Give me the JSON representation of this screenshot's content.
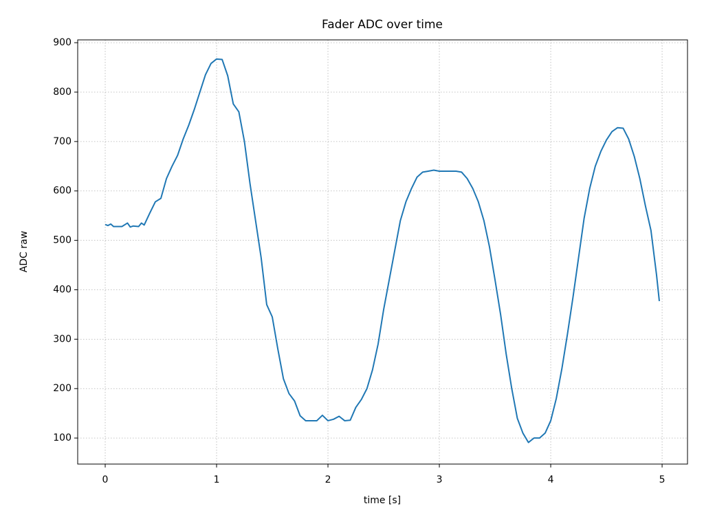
{
  "chart_data": {
    "type": "line",
    "title": "Fader ADC over time",
    "x_label": "time [s]",
    "y_label": "ADC raw",
    "x": [
      0,
      0.025,
      0.05,
      0.075,
      0.1,
      0.15,
      0.2,
      0.225,
      0.25,
      0.3,
      0.325,
      0.35,
      0.4,
      0.45,
      0.5,
      0.55,
      0.6,
      0.65,
      0.7,
      0.75,
      0.8,
      0.85,
      0.9,
      0.95,
      1.0,
      1.05,
      1.1,
      1.15,
      1.2,
      1.25,
      1.3,
      1.35,
      1.4,
      1.45,
      1.5,
      1.55,
      1.6,
      1.65,
      1.7,
      1.75,
      1.8,
      1.85,
      1.9,
      1.95,
      2.0,
      2.05,
      2.1,
      2.15,
      2.2,
      2.25,
      2.3,
      2.35,
      2.4,
      2.45,
      2.5,
      2.55,
      2.6,
      2.65,
      2.7,
      2.75,
      2.8,
      2.85,
      2.9,
      2.95,
      3.0,
      3.05,
      3.1,
      3.15,
      3.2,
      3.25,
      3.3,
      3.35,
      3.4,
      3.45,
      3.5,
      3.55,
      3.6,
      3.65,
      3.7,
      3.75,
      3.8,
      3.85,
      3.9,
      3.95,
      4.0,
      4.05,
      4.1,
      4.15,
      4.2,
      4.25,
      4.3,
      4.35,
      4.4,
      4.45,
      4.5,
      4.55,
      4.6,
      4.65,
      4.7,
      4.75,
      4.8,
      4.85,
      4.9,
      4.95,
      4.975
    ],
    "series": [
      {
        "name": "ADC raw",
        "color": "#1f77b4",
        "values": [
          532,
          530,
          533,
          528,
          528,
          528,
          535,
          527,
          529,
          528,
          535,
          531,
          555,
          578,
          585,
          625,
          650,
          672,
          705,
          733,
          765,
          800,
          835,
          858,
          867,
          866,
          833,
          776,
          760,
          700,
          615,
          540,
          465,
          370,
          345,
          280,
          220,
          190,
          175,
          145,
          135,
          135,
          135,
          146,
          135,
          138,
          144,
          135,
          136,
          162,
          178,
          200,
          238,
          290,
          360,
          420,
          480,
          540,
          578,
          605,
          628,
          638,
          640,
          642,
          640,
          640,
          640,
          640,
          638,
          625,
          605,
          578,
          540,
          487,
          420,
          350,
          270,
          200,
          140,
          110,
          91,
          100,
          100,
          110,
          135,
          180,
          240,
          310,
          385,
          465,
          545,
          605,
          650,
          680,
          703,
          720,
          728,
          727,
          705,
          670,
          625,
          570,
          520,
          430,
          377
        ]
      }
    ],
    "xlim": [
      -0.247,
      5.228
    ],
    "ylim": [
      47.3,
      905.7
    ],
    "xticks": [
      0,
      1,
      2,
      3,
      4,
      5
    ],
    "yticks": [
      100,
      200,
      300,
      400,
      500,
      600,
      700,
      800,
      900
    ],
    "grid": true
  }
}
